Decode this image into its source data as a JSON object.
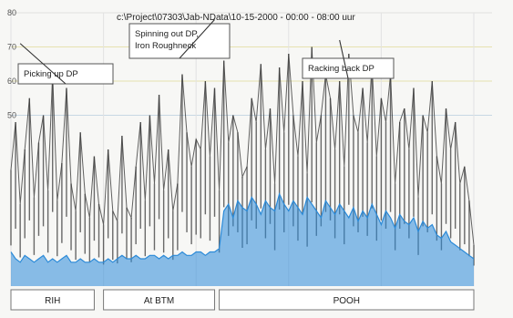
{
  "chart_data": {
    "type": "line",
    "title": "c:\\Project\\07303\\Jab-NData\\10-15-2000 - 00:00 - 08:00 uur",
    "ylim": [
      0,
      80
    ],
    "yticks": [
      {
        "value": 80,
        "label": "80"
      },
      {
        "value": 70,
        "label": "70"
      },
      {
        "value": 60,
        "label": "60"
      },
      {
        "value": 50,
        "label": "50"
      }
    ],
    "grid": true,
    "xlim": [
      0,
      100
    ],
    "series": [
      {
        "role": "upper",
        "color": "#3a3a3a",
        "x": [
          0,
          1,
          2,
          3,
          4,
          5,
          6,
          7,
          8,
          9,
          10,
          11,
          12,
          13,
          14,
          15,
          16,
          17,
          18,
          19,
          20,
          21,
          22,
          23,
          24,
          25,
          26,
          27,
          28,
          29,
          30,
          31,
          32,
          33,
          34,
          35,
          36,
          37,
          38,
          39,
          40,
          41,
          42,
          43,
          44,
          45,
          46,
          47,
          48,
          49,
          50,
          51,
          52,
          53,
          54,
          55,
          56,
          57,
          58,
          59,
          60,
          61,
          62,
          63,
          64,
          65,
          66,
          67,
          68,
          69,
          70,
          71,
          72,
          73,
          74,
          75,
          76,
          77,
          78,
          79,
          80,
          81,
          82,
          83,
          84,
          85,
          86,
          87,
          88,
          89,
          90,
          91,
          92,
          93,
          94,
          95,
          96,
          97,
          98,
          99,
          100
        ],
        "y": [
          34,
          48,
          24,
          40,
          55,
          26,
          42,
          50,
          28,
          62,
          25,
          36,
          58,
          30,
          22,
          45,
          27,
          20,
          38,
          24,
          18,
          40,
          22,
          19,
          44,
          23,
          20,
          35,
          48,
          25,
          50,
          30,
          56,
          28,
          40,
          22,
          30,
          62,
          45,
          35,
          43,
          40,
          60,
          38,
          58,
          28,
          66,
          42,
          50,
          45,
          32,
          35,
          55,
          48,
          65,
          40,
          52,
          30,
          64,
          45,
          68,
          50,
          38,
          60,
          33,
          70,
          42,
          50,
          62,
          55,
          40,
          60,
          35,
          68,
          50,
          45,
          58,
          42,
          65,
          38,
          55,
          48,
          62,
          30,
          48,
          52,
          40,
          58,
          26,
          50,
          45,
          60,
          38,
          30,
          52,
          40,
          48,
          30,
          35,
          25,
          12
        ]
      },
      {
        "role": "lower",
        "color": "#2b8ad8",
        "x": [
          0,
          1,
          2,
          3,
          4,
          5,
          6,
          7,
          8,
          9,
          10,
          11,
          12,
          13,
          14,
          15,
          16,
          17,
          18,
          19,
          20,
          21,
          22,
          23,
          24,
          25,
          26,
          27,
          28,
          29,
          30,
          31,
          32,
          33,
          34,
          35,
          36,
          37,
          38,
          39,
          40,
          41,
          42,
          43,
          44,
          45,
          46,
          47,
          48,
          49,
          50,
          51,
          52,
          53,
          54,
          55,
          56,
          57,
          58,
          59,
          60,
          61,
          62,
          63,
          64,
          65,
          66,
          67,
          68,
          69,
          70,
          71,
          72,
          73,
          74,
          75,
          76,
          77,
          78,
          79,
          80,
          81,
          82,
          83,
          84,
          85,
          86,
          87,
          88,
          89,
          90,
          91,
          92,
          93,
          94,
          95,
          96,
          97,
          98,
          99,
          100
        ],
        "y": [
          10,
          8,
          7,
          9,
          8,
          7,
          8,
          9,
          7,
          8,
          7,
          8,
          9,
          7,
          7,
          8,
          7,
          7,
          8,
          7,
          7,
          8,
          7,
          8,
          9,
          8,
          8,
          9,
          8,
          8,
          9,
          9,
          8,
          9,
          8,
          9,
          9,
          10,
          9,
          9,
          10,
          10,
          9,
          10,
          10,
          11,
          22,
          24,
          20,
          25,
          23,
          22,
          26,
          24,
          21,
          25,
          23,
          22,
          27,
          24,
          22,
          25,
          23,
          21,
          26,
          24,
          22,
          20,
          25,
          23,
          21,
          24,
          22,
          20,
          23,
          19,
          22,
          20,
          24,
          21,
          18,
          22,
          20,
          17,
          21,
          19,
          18,
          20,
          16,
          19,
          17,
          18,
          15,
          14,
          16,
          13,
          12,
          11,
          10,
          9,
          8
        ]
      }
    ],
    "annotations": [
      {
        "text": "Picking up DP",
        "target_x": 2,
        "target_y": 71
      },
      {
        "text": "Spinning out DP,\nIron Roughneck",
        "target_x": 44,
        "target_y": 78
      },
      {
        "text": "Racking back DP",
        "target_x": 71,
        "target_y": 72
      }
    ],
    "phases": [
      {
        "label": "RIH",
        "from": 0,
        "to": 18
      },
      {
        "label": "At BTM",
        "from": 20,
        "to": 44
      },
      {
        "label": "POOH",
        "from": 45,
        "to": 100
      }
    ]
  }
}
